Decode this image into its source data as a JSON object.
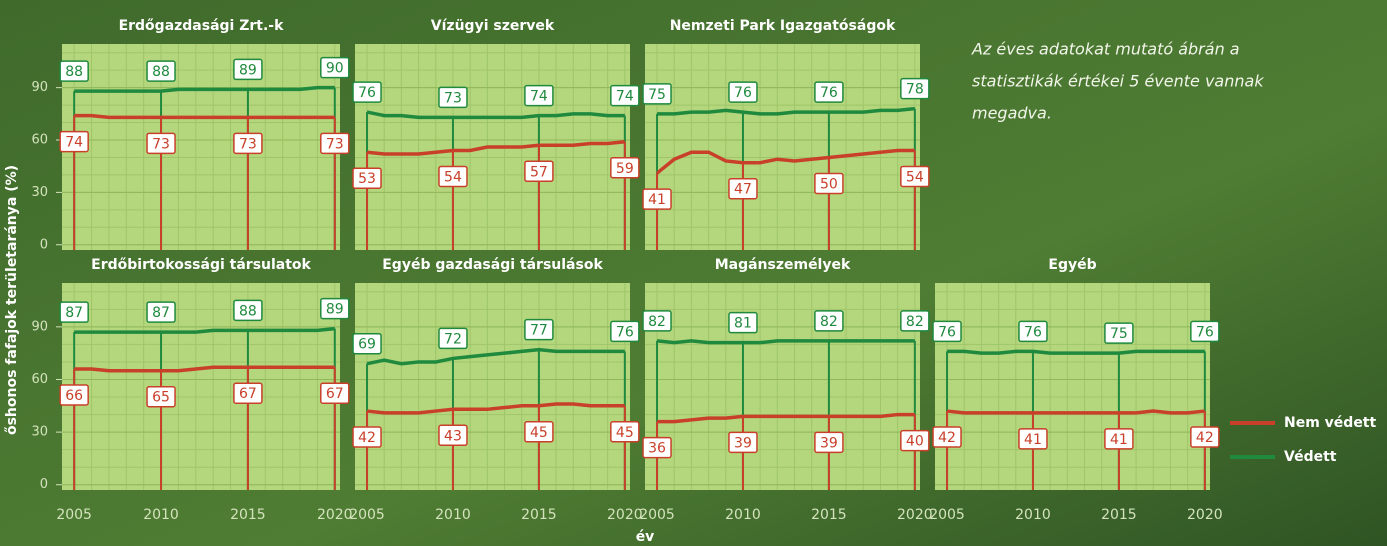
{
  "y_label": "őshonos fafajok területaránya (%)",
  "x_label": "év",
  "note": [
    "Az éves adatokat mutató ábrán a",
    "statisztikák értékei 5 évente vannak",
    "megadva."
  ],
  "chart_data": [
    {
      "type": "line",
      "title": "Erdőgazdasági Zrt.-k",
      "x": [
        2005,
        2006,
        2007,
        2008,
        2009,
        2010,
        2011,
        2012,
        2013,
        2014,
        2015,
        2016,
        2017,
        2018,
        2019,
        2020
      ],
      "xlim": [
        2004.3,
        2020.3
      ],
      "xticks": [
        2005,
        2010,
        2015,
        2020
      ],
      "ylim": [
        -3,
        115
      ],
      "yticks": [
        0,
        30,
        60,
        90
      ],
      "grid": true,
      "series": [
        {
          "name": "Védett",
          "color": "#1f8a3e",
          "values": [
            88,
            88,
            88,
            88,
            88,
            88,
            89,
            89,
            89,
            89,
            89,
            89,
            89,
            89,
            90,
            90
          ]
        },
        {
          "name": "Nem védett",
          "color": "#c8402a",
          "values": [
            74,
            74,
            73,
            73,
            73,
            73,
            73,
            73,
            73,
            73,
            73,
            73,
            73,
            73,
            73,
            73
          ]
        }
      ]
    },
    {
      "type": "line",
      "title": "Vízügyi szervek",
      "x": [
        2005,
        2006,
        2007,
        2008,
        2009,
        2010,
        2011,
        2012,
        2013,
        2014,
        2015,
        2016,
        2017,
        2018,
        2019,
        2020
      ],
      "xlim": [
        2004.3,
        2020.3
      ],
      "xticks": [
        2005,
        2010,
        2015,
        2020
      ],
      "ylim": [
        -3,
        115
      ],
      "yticks": [
        0,
        30,
        60,
        90
      ],
      "grid": true,
      "series": [
        {
          "name": "Védett",
          "color": "#1f8a3e",
          "values": [
            76,
            74,
            74,
            73,
            73,
            73,
            73,
            73,
            73,
            73,
            74,
            74,
            75,
            75,
            74,
            74
          ]
        },
        {
          "name": "Nem védett",
          "color": "#c8402a",
          "values": [
            53,
            52,
            52,
            52,
            53,
            54,
            54,
            56,
            56,
            56,
            57,
            57,
            57,
            58,
            58,
            59
          ]
        }
      ]
    },
    {
      "type": "line",
      "title": "Nemzeti Park Igazgatóságok",
      "x": [
        2005,
        2006,
        2007,
        2008,
        2009,
        2010,
        2011,
        2012,
        2013,
        2014,
        2015,
        2016,
        2017,
        2018,
        2019,
        2020
      ],
      "xlim": [
        2004.3,
        2020.3
      ],
      "xticks": [
        2005,
        2010,
        2015,
        2020
      ],
      "ylim": [
        -3,
        115
      ],
      "yticks": [
        0,
        30,
        60,
        90
      ],
      "grid": true,
      "series": [
        {
          "name": "Védett",
          "color": "#1f8a3e",
          "values": [
            75,
            75,
            76,
            76,
            77,
            76,
            75,
            75,
            76,
            76,
            76,
            76,
            76,
            77,
            77,
            78
          ]
        },
        {
          "name": "Nem védett",
          "color": "#c8402a",
          "values": [
            41,
            49,
            53,
            53,
            48,
            47,
            47,
            49,
            48,
            49,
            50,
            51,
            52,
            53,
            54,
            54
          ]
        }
      ]
    },
    {
      "type": "line",
      "title": "Erdőbirtokossági társulatok",
      "x": [
        2005,
        2006,
        2007,
        2008,
        2009,
        2010,
        2011,
        2012,
        2013,
        2014,
        2015,
        2016,
        2017,
        2018,
        2019,
        2020
      ],
      "xlim": [
        2004.3,
        2020.3
      ],
      "xticks": [
        2005,
        2010,
        2015,
        2020
      ],
      "ylim": [
        -3,
        115
      ],
      "yticks": [
        0,
        30,
        60,
        90
      ],
      "grid": true,
      "series": [
        {
          "name": "Védett",
          "color": "#1f8a3e",
          "values": [
            87,
            87,
            87,
            87,
            87,
            87,
            87,
            87,
            88,
            88,
            88,
            88,
            88,
            88,
            88,
            89
          ]
        },
        {
          "name": "Nem védett",
          "color": "#c8402a",
          "values": [
            66,
            66,
            65,
            65,
            65,
            65,
            65,
            66,
            67,
            67,
            67,
            67,
            67,
            67,
            67,
            67
          ]
        }
      ]
    },
    {
      "type": "line",
      "title": "Egyéb gazdasági társulások",
      "x": [
        2005,
        2006,
        2007,
        2008,
        2009,
        2010,
        2011,
        2012,
        2013,
        2014,
        2015,
        2016,
        2017,
        2018,
        2019,
        2020
      ],
      "xlim": [
        2004.3,
        2020.3
      ],
      "xticks": [
        2005,
        2010,
        2015,
        2020
      ],
      "ylim": [
        -3,
        115
      ],
      "yticks": [
        0,
        30,
        60,
        90
      ],
      "grid": true,
      "series": [
        {
          "name": "Védett",
          "color": "#1f8a3e",
          "values": [
            69,
            71,
            69,
            70,
            70,
            72,
            73,
            74,
            75,
            76,
            77,
            76,
            76,
            76,
            76,
            76
          ]
        },
        {
          "name": "Nem védett",
          "color": "#c8402a",
          "values": [
            42,
            41,
            41,
            41,
            42,
            43,
            43,
            43,
            44,
            45,
            45,
            46,
            46,
            45,
            45,
            45
          ]
        }
      ]
    },
    {
      "type": "line",
      "title": "Magánszemélyek",
      "x": [
        2005,
        2006,
        2007,
        2008,
        2009,
        2010,
        2011,
        2012,
        2013,
        2014,
        2015,
        2016,
        2017,
        2018,
        2019,
        2020
      ],
      "xlim": [
        2004.3,
        2020.3
      ],
      "xticks": [
        2005,
        2010,
        2015,
        2020
      ],
      "ylim": [
        -3,
        115
      ],
      "yticks": [
        0,
        30,
        60,
        90
      ],
      "grid": true,
      "series": [
        {
          "name": "Védett",
          "color": "#1f8a3e",
          "values": [
            82,
            81,
            82,
            81,
            81,
            81,
            81,
            82,
            82,
            82,
            82,
            82,
            82,
            82,
            82,
            82
          ]
        },
        {
          "name": "Nem védett",
          "color": "#c8402a",
          "values": [
            36,
            36,
            37,
            38,
            38,
            39,
            39,
            39,
            39,
            39,
            39,
            39,
            39,
            39,
            40,
            40
          ]
        }
      ]
    },
    {
      "type": "line",
      "title": "Egyéb",
      "x": [
        2005,
        2006,
        2007,
        2008,
        2009,
        2010,
        2011,
        2012,
        2013,
        2014,
        2015,
        2016,
        2017,
        2018,
        2019,
        2020
      ],
      "xlim": [
        2004.3,
        2020.3
      ],
      "xticks": [
        2005,
        2010,
        2015,
        2020
      ],
      "ylim": [
        -3,
        115
      ],
      "yticks": [
        0,
        30,
        60,
        90
      ],
      "grid": true,
      "series": [
        {
          "name": "Védett",
          "color": "#1f8a3e",
          "values": [
            76,
            76,
            75,
            75,
            76,
            76,
            75,
            75,
            75,
            75,
            75,
            76,
            76,
            76,
            76,
            76
          ]
        },
        {
          "name": "Nem védett",
          "color": "#c8402a",
          "values": [
            42,
            41,
            41,
            41,
            41,
            41,
            41,
            41,
            41,
            41,
            41,
            41,
            42,
            41,
            41,
            42
          ]
        }
      ]
    }
  ]
}
